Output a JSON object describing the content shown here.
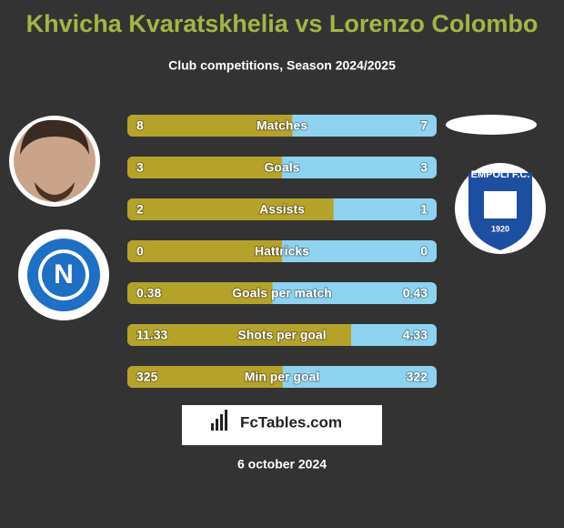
{
  "header": {
    "title": "Khvicha Kvaratskhelia vs Lorenzo Colombo",
    "subtitle": "Club competitions, Season 2024/2025"
  },
  "rows": [
    {
      "label": "Matches",
      "left": 8,
      "right": 7
    },
    {
      "label": "Goals",
      "left": 3,
      "right": 3
    },
    {
      "label": "Assists",
      "left": 2,
      "right": 1
    },
    {
      "label": "Hattricks",
      "left": 0,
      "right": 0
    },
    {
      "label": "Goals per match",
      "left": 0.38,
      "right": 0.43
    },
    {
      "label": "Shots per goal",
      "left": 11.33,
      "right": 4.33
    },
    {
      "label": "Min per goal",
      "left": 325,
      "right": 322
    }
  ],
  "logos": {
    "napoli": "N",
    "empoli": "EMPOLI F.C.",
    "empoli_year": "1920"
  },
  "brand": "FcTables.com",
  "date": "6 october 2024"
}
